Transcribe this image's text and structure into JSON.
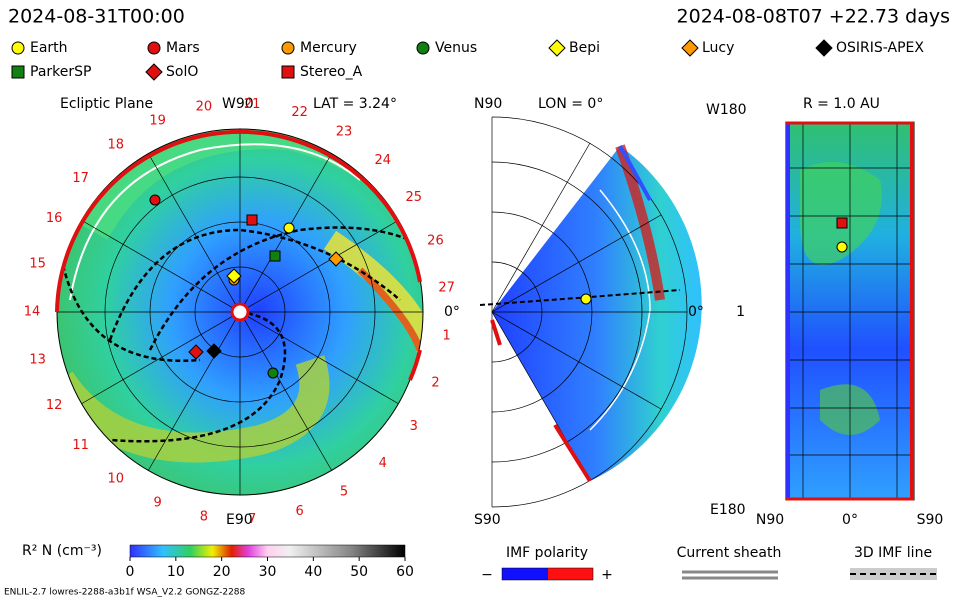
{
  "header": {
    "left": "2024-08-31T00:00",
    "right": "2024-08-08T07 +22.73 days"
  },
  "legend": [
    {
      "label": "Earth",
      "shape": "circle",
      "color": "#ffff00"
    },
    {
      "label": "Mars",
      "shape": "circle",
      "color": "#e01010"
    },
    {
      "label": "Mercury",
      "shape": "circle",
      "color": "#ff9900"
    },
    {
      "label": "Venus",
      "shape": "circle",
      "color": "#108010"
    },
    {
      "label": "Bepi",
      "shape": "diamond",
      "color": "#ffff00"
    },
    {
      "label": "Lucy",
      "shape": "diamond",
      "color": "#ff9900"
    },
    {
      "label": "OSIRIS-APEX",
      "shape": "diamond",
      "color": "#000000"
    },
    {
      "label": "ParkerSP",
      "shape": "square",
      "color": "#108010"
    },
    {
      "label": "SolO",
      "shape": "diamond",
      "color": "#e01010"
    },
    {
      "label": "Stereo_A",
      "shape": "square",
      "color": "#e01010"
    }
  ],
  "ecliptic": {
    "title": "Ecliptic Plane",
    "top": "W90",
    "lat": "LAT = 3.24°",
    "right": "0°",
    "bottom": "E90",
    "labels": [
      1,
      2,
      3,
      4,
      5,
      6,
      7,
      8,
      9,
      10,
      11,
      12,
      13,
      14,
      15,
      16,
      17,
      18,
      19,
      20,
      21,
      22,
      23,
      24,
      25,
      26,
      27
    ]
  },
  "meridional": {
    "top": "N90",
    "lon": "LON = 0°",
    "right": "0°",
    "bottom": "S90"
  },
  "radial": {
    "top_left": "W180",
    "title": "R = 1.0 AU",
    "mid": "1",
    "bottom_left": "E180",
    "x_labels": [
      "N90",
      "0°",
      "S90"
    ]
  },
  "colorbar": {
    "label": "R² N (cm⁻³)",
    "range": [
      0,
      60
    ],
    "ticks": [
      0,
      10,
      20,
      30,
      40,
      50,
      60
    ]
  },
  "imf": {
    "title": "IMF polarity",
    "minus": "−",
    "plus": "+"
  },
  "sheath": {
    "title": "Current sheath"
  },
  "imf_line": {
    "title": "3D IMF line"
  },
  "footer": "ENLIL-2.7 lowres-2288-a3b1f WSA_V2.2 GONGZ-2288"
}
